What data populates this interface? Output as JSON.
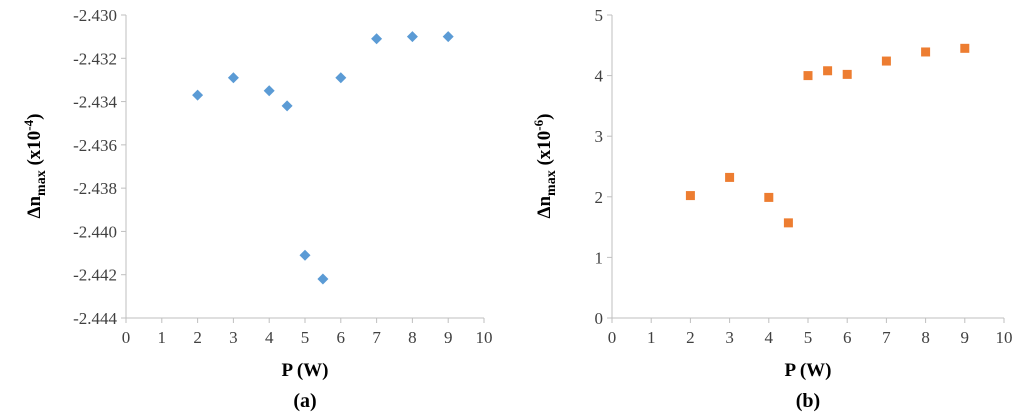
{
  "chart_data": [
    {
      "type": "scatter",
      "panel_label": "(a)",
      "xlabel": "P (W)",
      "ylabel": {
        "main": "Δn",
        "sub": "max",
        "unit_prefix": " (x10",
        "exponent": "-4",
        "unit_suffix": ")"
      },
      "xlim": [
        0,
        10
      ],
      "ylim": [
        -2.444,
        -2.43
      ],
      "x_ticks": [
        "0",
        "1",
        "2",
        "3",
        "4",
        "5",
        "6",
        "7",
        "8",
        "9",
        "10"
      ],
      "y_ticks": [
        "-2.430",
        "-2.432",
        "-2.434",
        "-2.436",
        "-2.438",
        "-2.440",
        "-2.442",
        "-2.444"
      ],
      "grid": false,
      "marker": "diamond",
      "color": "#5b9bd5",
      "series": [
        {
          "x": [
            2,
            3,
            4,
            4.5,
            5,
            5.5,
            6,
            7,
            8,
            9
          ],
          "y": [
            -2.4337,
            -2.4329,
            -2.4335,
            -2.4342,
            -2.4411,
            -2.4422,
            -2.4329,
            -2.4311,
            -2.431,
            -2.431
          ]
        }
      ]
    },
    {
      "type": "scatter",
      "panel_label": "(b)",
      "xlabel": "P (W)",
      "ylabel": {
        "main": "Δn",
        "sub": "max",
        "unit_prefix": " (x10",
        "exponent": "-6",
        "unit_suffix": ")"
      },
      "xlim": [
        0,
        10
      ],
      "ylim": [
        0,
        5
      ],
      "x_ticks": [
        "0",
        "1",
        "2",
        "3",
        "4",
        "5",
        "6",
        "7",
        "8",
        "9",
        "10"
      ],
      "y_ticks": [
        "0",
        "1",
        "2",
        "3",
        "4",
        "5"
      ],
      "grid": false,
      "marker": "square",
      "color": "#ed7d31",
      "series": [
        {
          "x": [
            2,
            3,
            4,
            4.5,
            5,
            5.5,
            6,
            7,
            8,
            9
          ],
          "y": [
            2.02,
            2.32,
            1.99,
            1.57,
            4.0,
            4.08,
            4.02,
            4.24,
            4.39,
            4.45
          ]
        }
      ]
    }
  ]
}
